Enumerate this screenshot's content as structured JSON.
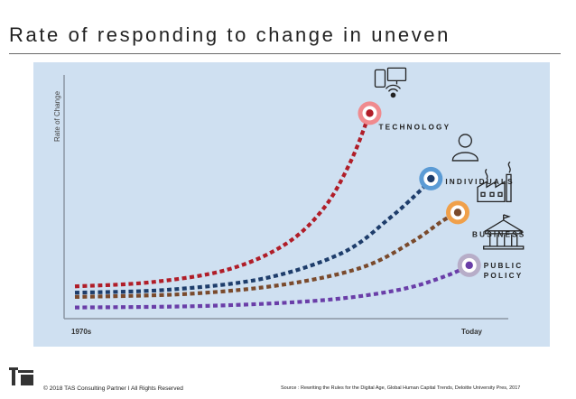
{
  "slide": {
    "title": "Rate of responding to change in uneven"
  },
  "chart_data": {
    "type": "line",
    "title": "",
    "xlabel": "",
    "ylabel": "Rate of Change",
    "x_tick_labels": [
      "1970s",
      "Today"
    ],
    "xlim": [
      0,
      100
    ],
    "ylim": [
      0,
      100
    ],
    "grid": false,
    "series": [
      {
        "name": "TECHNOLOGY",
        "label_lines": [
          "TECHNOLOGY"
        ],
        "color": "#b01d28",
        "ring_color": "#f08a8e",
        "icon": "devices-icon",
        "x": [
          0,
          20,
          40,
          55,
          65,
          72,
          77
        ],
        "y": [
          11,
          13,
          19,
          31,
          48,
          70,
          93
        ]
      },
      {
        "name": "INDIVIDUALS",
        "label_lines": [
          "INDIVIDUALS"
        ],
        "color": "#1e3d6b",
        "ring_color": "#5b9bd5",
        "icon": "person-icon",
        "x": [
          0,
          25,
          50,
          70,
          82,
          90,
          93
        ],
        "y": [
          8,
          9.5,
          15,
          27,
          43,
          56,
          62
        ]
      },
      {
        "name": "BUSINESS",
        "label_lines": [
          "BUSINESS"
        ],
        "color": "#7a4a2c",
        "ring_color": "#f0a04a",
        "icon": "factory-icon",
        "x": [
          0,
          30,
          55,
          75,
          88,
          96,
          100
        ],
        "y": [
          6,
          7.5,
          12,
          20,
          32,
          42,
          46
        ]
      },
      {
        "name": "PUBLIC POLICY",
        "label_lines": [
          "PUBLIC",
          "POLICY"
        ],
        "color": "#6a3ea8",
        "ring_color": "#b7adc8",
        "icon": "government-building-icon",
        "x": [
          0,
          35,
          65,
          85,
          97,
          103
        ],
        "y": [
          1,
          1.8,
          4.5,
          9.5,
          16,
          21
        ]
      }
    ]
  },
  "footer": {
    "copyright": "© 2018 TAS Consulting Partner  I  All Rights Reserved",
    "source": "Source :  Rewriting the Rules for the Digital Age,  Global Human Capital Trends,  Deloitte University Pres, 2017"
  }
}
